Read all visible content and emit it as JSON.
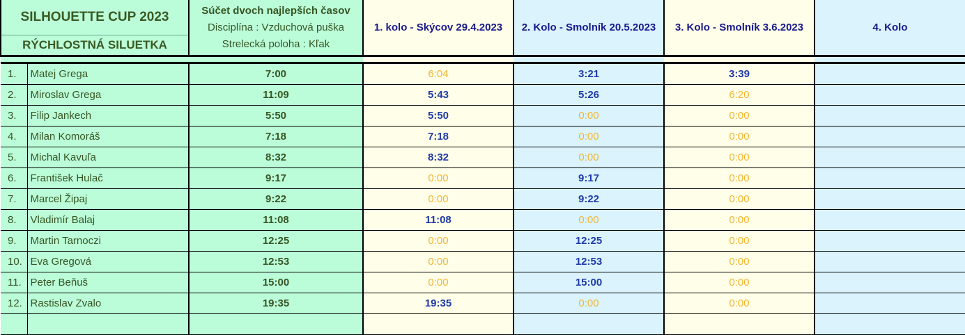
{
  "header": {
    "title": "SILHOUETTE CUP 2023",
    "subtitle": "RÝCHLOSTNÁ SILUETKA",
    "summary_title": "Súčet dvoch najlepších časov",
    "discipline": "Disciplína :  Vzduchová puška",
    "position": "Strelecká poloha :  Kľak",
    "rounds": [
      "1. kolo - Skýcov 29.4.2023",
      "2. Kolo - Smolník 20.5.2023",
      "3. Kolo - Smolník 3.6.2023",
      "4. Kolo"
    ]
  },
  "colors": {
    "green": "#bbfcd9",
    "cream": "#fffee8",
    "blue": "#daf3fd",
    "best_time": "#1f3aa8",
    "other_time": "#f2b632"
  },
  "rows": [
    {
      "rank": "1.",
      "name": "Matej Grega",
      "total": "7:00",
      "r": [
        "6:04",
        "3:21",
        "3:39",
        ""
      ],
      "best": [
        false,
        true,
        true,
        false
      ]
    },
    {
      "rank": "2.",
      "name": "Miroslav Grega",
      "total": "11:09",
      "r": [
        "5:43",
        "5:26",
        "6:20",
        ""
      ],
      "best": [
        true,
        true,
        false,
        false
      ]
    },
    {
      "rank": "3.",
      "name": "Filip Jankech",
      "total": "5:50",
      "r": [
        "5:50",
        "0:00",
        "0:00",
        ""
      ],
      "best": [
        true,
        false,
        false,
        false
      ]
    },
    {
      "rank": "4.",
      "name": "Milan Komoráš",
      "total": "7:18",
      "r": [
        "7:18",
        "0:00",
        "0:00",
        ""
      ],
      "best": [
        true,
        false,
        false,
        false
      ]
    },
    {
      "rank": "5.",
      "name": "Michal Kavuľa",
      "total": "8:32",
      "r": [
        "8:32",
        "0:00",
        "0:00",
        ""
      ],
      "best": [
        true,
        false,
        false,
        false
      ]
    },
    {
      "rank": "6.",
      "name": "František Hulač",
      "total": "9:17",
      "r": [
        "0:00",
        "9:17",
        "0:00",
        ""
      ],
      "best": [
        false,
        true,
        false,
        false
      ]
    },
    {
      "rank": "7.",
      "name": "Marcel Žipaj",
      "total": "9:22",
      "r": [
        "0:00",
        "9:22",
        "0:00",
        ""
      ],
      "best": [
        false,
        true,
        false,
        false
      ]
    },
    {
      "rank": "8.",
      "name": "Vladimír Balaj",
      "total": "11:08",
      "r": [
        "11:08",
        "0:00",
        "0:00",
        ""
      ],
      "best": [
        true,
        false,
        false,
        false
      ]
    },
    {
      "rank": "9.",
      "name": "Martin Tarnoczi",
      "total": "12:25",
      "r": [
        "0:00",
        "12:25",
        "0:00",
        ""
      ],
      "best": [
        false,
        true,
        false,
        false
      ]
    },
    {
      "rank": "10.",
      "name": "Eva Gregová",
      "total": "12:53",
      "r": [
        "0:00",
        "12:53",
        "0:00",
        ""
      ],
      "best": [
        false,
        true,
        false,
        false
      ]
    },
    {
      "rank": "11.",
      "name": "Peter Beňuš",
      "total": "15:00",
      "r": [
        "0:00",
        "15:00",
        "0:00",
        ""
      ],
      "best": [
        false,
        true,
        false,
        false
      ]
    },
    {
      "rank": "12.",
      "name": "Rastislav Zvalo",
      "total": "19:35",
      "r": [
        "19:35",
        "0:00",
        "0:00",
        ""
      ],
      "best": [
        true,
        false,
        false,
        false
      ]
    },
    {
      "rank": "",
      "name": "",
      "total": "",
      "r": [
        "",
        "",
        "",
        ""
      ],
      "best": [
        false,
        false,
        false,
        false
      ]
    }
  ]
}
